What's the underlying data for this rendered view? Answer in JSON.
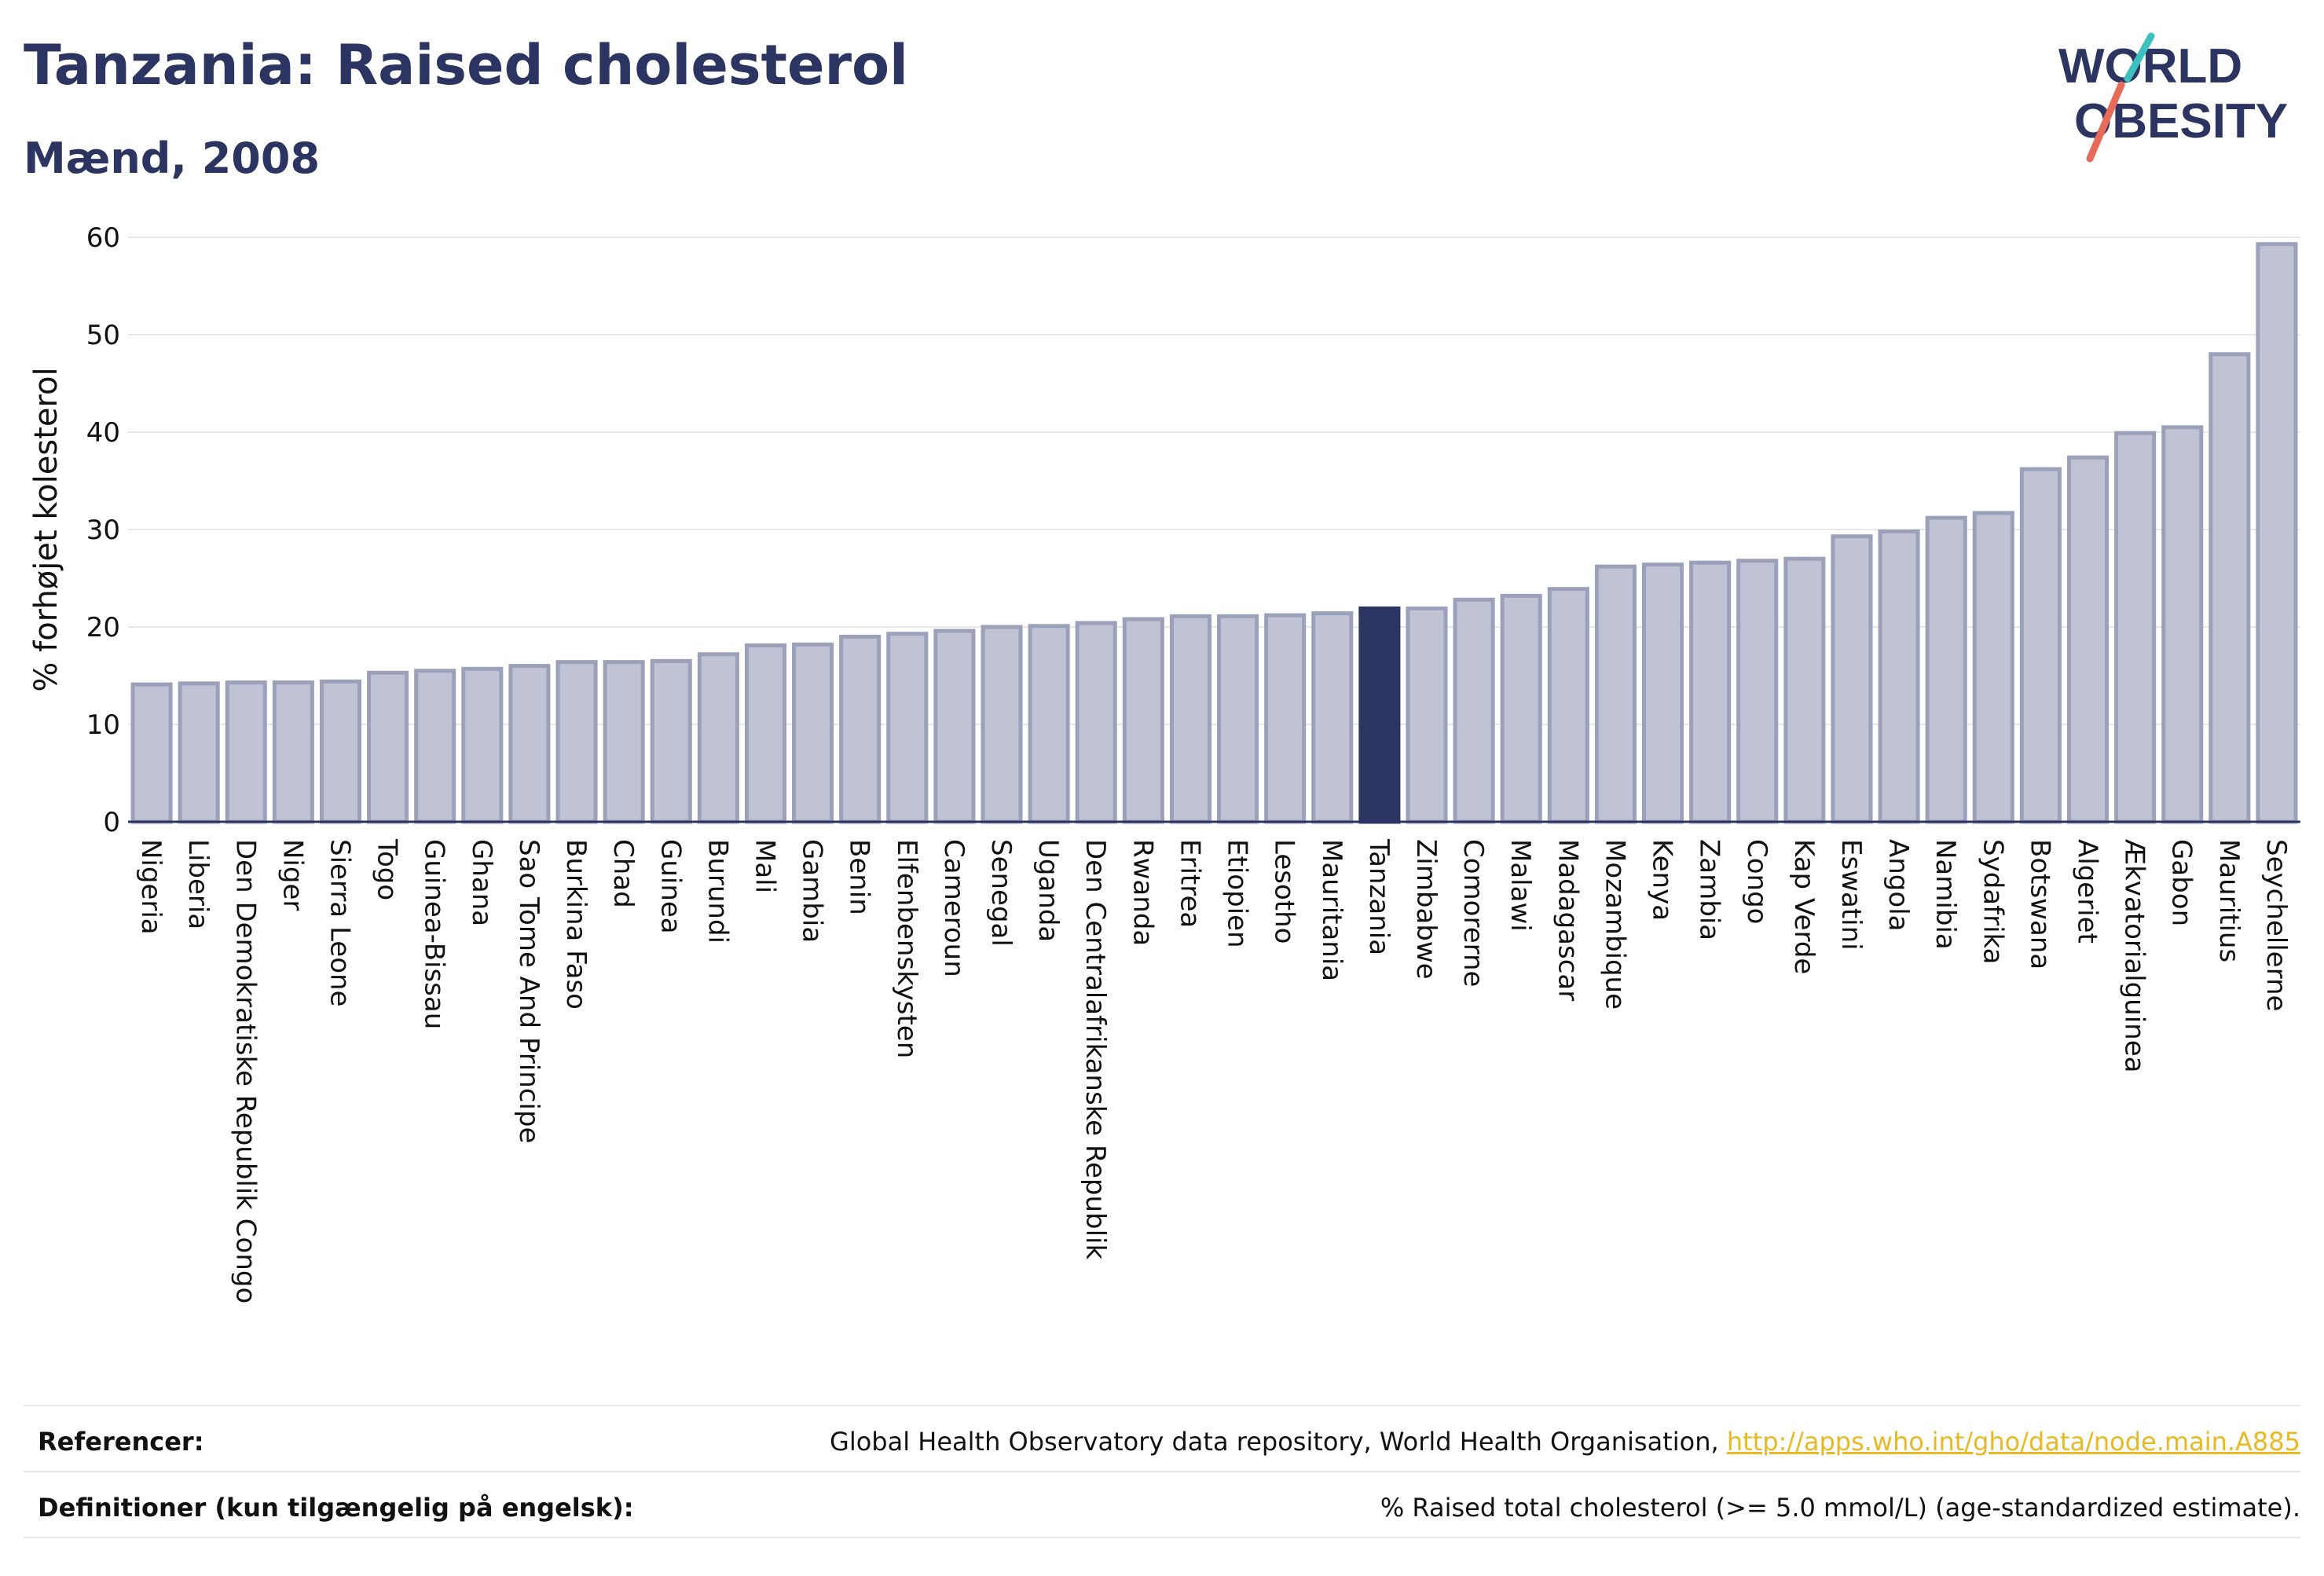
{
  "header": {
    "title": "Tanzania: Raised cholesterol",
    "subtitle": "Mænd, 2008"
  },
  "logo": {
    "line1": "WORLD",
    "line2": "OBESITY",
    "icon": "world-obesity-logo"
  },
  "colors": {
    "bar": "#bfc3d3",
    "bar_border": "#9ba1bb",
    "highlight": "#2c3561",
    "text": "#2c3561",
    "grid": "#e8e8e8",
    "link": "#e8b923"
  },
  "chart_data": {
    "type": "bar",
    "ylabel": "% forhøjet kolesterol",
    "ylim": [
      0,
      60
    ],
    "yticks": [
      0,
      10,
      20,
      30,
      40,
      50,
      60
    ],
    "grid": true,
    "highlight": "Tanzania",
    "categories": [
      "Nigeria",
      "Liberia",
      "Den Demokratiske Republik Congo",
      "Niger",
      "Sierra Leone",
      "Togo",
      "Guinea-Bissau",
      "Ghana",
      "Sao Tome And Principe",
      "Burkina Faso",
      "Chad",
      "Guinea",
      "Burundi",
      "Mali",
      "Gambia",
      "Benin",
      "Elfenbenskysten",
      "Cameroun",
      "Senegal",
      "Uganda",
      "Den Centralafrikanske Republik",
      "Rwanda",
      "Eritrea",
      "Etiopien",
      "Lesotho",
      "Mauritania",
      "Tanzania",
      "Zimbabwe",
      "Comorerne",
      "Malawi",
      "Madagascar",
      "Mozambique",
      "Kenya",
      "Zambia",
      "Congo",
      "Kap Verde",
      "Eswatini",
      "Angola",
      "Namibia",
      "Sydafrika",
      "Botswana",
      "Algeriet",
      "Ækvatorialguinea",
      "Gabon",
      "Mauritius",
      "Seychellerne"
    ],
    "values": [
      14.1,
      14.2,
      14.3,
      14.3,
      14.4,
      15.3,
      15.5,
      15.7,
      16.0,
      16.4,
      16.4,
      16.5,
      17.2,
      18.1,
      18.2,
      19.0,
      19.3,
      19.6,
      20.0,
      20.1,
      20.4,
      20.8,
      21.1,
      21.1,
      21.2,
      21.4,
      21.9,
      21.9,
      22.8,
      23.2,
      23.9,
      26.2,
      26.4,
      26.6,
      26.8,
      27.0,
      29.3,
      29.8,
      31.2,
      31.7,
      36.2,
      37.4,
      39.9,
      40.5,
      48.0,
      59.3
    ]
  },
  "footer": {
    "references_label": "Referencer:",
    "references_text": "Global Health Observatory data repository, World Health Organisation, ",
    "references_link": "http://apps.who.int/gho/data/node.main.A885",
    "definitions_label": "Definitioner (kun tilgængelig på engelsk):",
    "definitions_text": "% Raised total cholesterol (>= 5.0 mmol/L) (age-standardized estimate)."
  }
}
